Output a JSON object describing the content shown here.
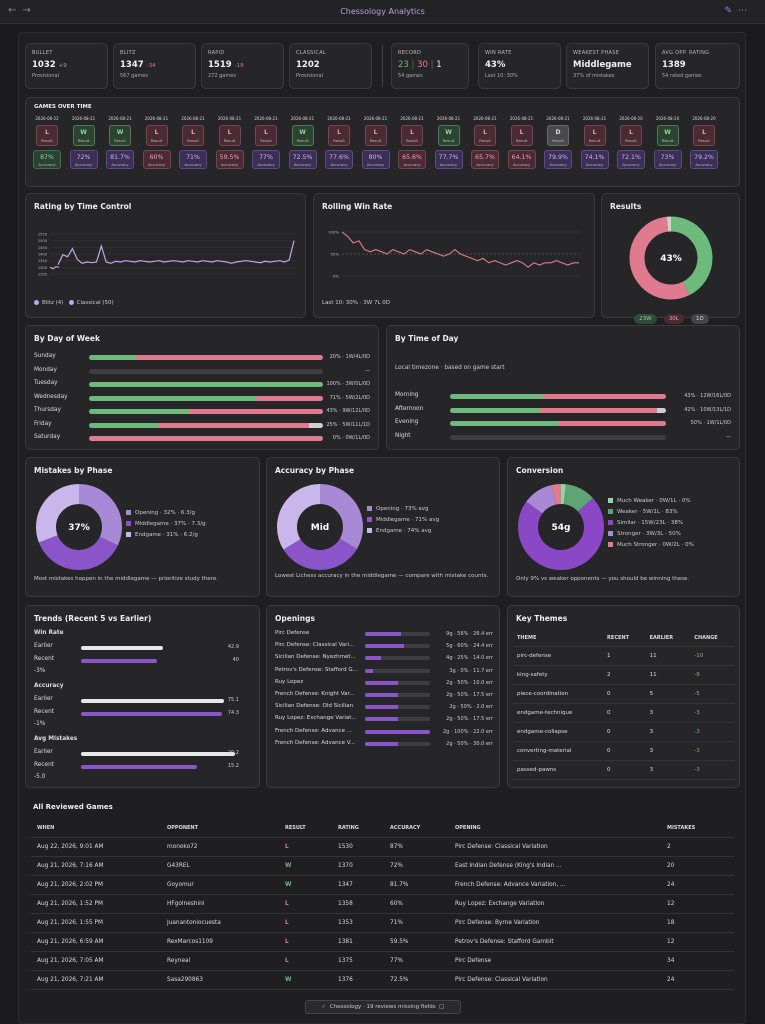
{
  "window": {
    "title": "Chessology Analytics"
  },
  "stats": [
    {
      "label": "BULLET",
      "value": "1032",
      "delta": "+9",
      "delta_sign": "pos",
      "sub": "Provisional"
    },
    {
      "label": "BLITZ",
      "value": "1347",
      "delta": "-34",
      "delta_sign": "neg",
      "sub": "567 games"
    },
    {
      "label": "RAPID",
      "value": "1519",
      "delta": "-19",
      "delta_sign": "neg",
      "sub": "272 games"
    },
    {
      "label": "CLASSICAL",
      "value": "1202",
      "delta": "",
      "delta_sign": "",
      "sub": "Provisional"
    }
  ],
  "record": {
    "label": "RECORD",
    "wins": "23",
    "losses": "30",
    "draws": "1",
    "sub": "54 games"
  },
  "win_rate": {
    "label": "WIN RATE",
    "value": "43%",
    "sub": "Last 10: 30%"
  },
  "weakest_phase": {
    "label": "WEAKEST PHASE",
    "value": "Middlegame",
    "sub": "37% of mistakes"
  },
  "avg_opp": {
    "label": "AVG OPP. RATING",
    "value": "1389",
    "sub": "54 rated games"
  },
  "games_over_time": {
    "title": "GAMES OVER TIME",
    "result_sub": "Result",
    "acc_sub": "Accuracy",
    "games": [
      {
        "date": "2026-08-22",
        "result": "L",
        "acc": "87%",
        "acc_tone": "g"
      },
      {
        "date": "2026-08-21",
        "result": "W",
        "acc": "72%",
        "acc_tone": "p"
      },
      {
        "date": "2026-08-21",
        "result": "W",
        "acc": "81.7%",
        "acc_tone": "p"
      },
      {
        "date": "2026-08-21",
        "result": "L",
        "acc": "60%",
        "acc_tone": "r"
      },
      {
        "date": "2026-08-21",
        "result": "L",
        "acc": "71%",
        "acc_tone": "p"
      },
      {
        "date": "2026-08-21",
        "result": "L",
        "acc": "59.5%",
        "acc_tone": "r"
      },
      {
        "date": "2026-08-21",
        "result": "L",
        "acc": "77%",
        "acc_tone": "p"
      },
      {
        "date": "2026-08-21",
        "result": "W",
        "acc": "72.5%",
        "acc_tone": "p"
      },
      {
        "date": "2026-08-21",
        "result": "L",
        "acc": "77.6%",
        "acc_tone": "p"
      },
      {
        "date": "2026-08-21",
        "result": "L",
        "acc": "80%",
        "acc_tone": "p"
      },
      {
        "date": "2026-08-21",
        "result": "L",
        "acc": "65.6%",
        "acc_tone": "r"
      },
      {
        "date": "2026-08-21",
        "result": "W",
        "acc": "77.7%",
        "acc_tone": "p"
      },
      {
        "date": "2026-08-21",
        "result": "L",
        "acc": "65.7%",
        "acc_tone": "r"
      },
      {
        "date": "2026-08-21",
        "result": "L",
        "acc": "64.1%",
        "acc_tone": "r"
      },
      {
        "date": "2026-08-21",
        "result": "D",
        "acc": "79.9%",
        "acc_tone": "p"
      },
      {
        "date": "2026-08-21",
        "result": "L",
        "acc": "74.1%",
        "acc_tone": "p"
      },
      {
        "date": "2026-08-20",
        "result": "L",
        "acc": "72.1%",
        "acc_tone": "p"
      },
      {
        "date": "2026-08-20",
        "result": "W",
        "acc": "73%",
        "acc_tone": "p"
      },
      {
        "date": "2026-08-20",
        "result": "L",
        "acc": "79.2%",
        "acc_tone": "p"
      }
    ]
  },
  "rating_chart": {
    "title": "Rating by Time Control",
    "yticks": [
      "1550",
      "1500",
      "1450",
      "1400",
      "1350",
      "1300",
      "1250"
    ],
    "ymin": 1250,
    "ymax": 1550,
    "blitz_name": "Blitz (4)",
    "classical_name": "Classical (50)",
    "blitz": [
      1300,
      1290,
      1305,
      1300
    ],
    "classical": [
      1320,
      1395,
      1380,
      1440,
      1360,
      1330,
      1340,
      1335,
      1340,
      1460,
      1340,
      1330,
      1345,
      1340,
      1350,
      1345,
      1340,
      1350,
      1345,
      1340,
      1345,
      1350,
      1340,
      1345,
      1350,
      1345,
      1340,
      1350,
      1345,
      1340,
      1350,
      1345,
      1340,
      1350,
      1345,
      1340,
      1330,
      1340,
      1345,
      1350,
      1345,
      1340,
      1335,
      1345,
      1340,
      1345,
      1350,
      1340,
      1355,
      1500
    ]
  },
  "rolling_chart": {
    "title": "Rolling Win Rate",
    "yticks": [
      "100%",
      "50%",
      "0%"
    ],
    "values": [
      100,
      90,
      75,
      80,
      60,
      55,
      60,
      55,
      50,
      60,
      55,
      50,
      60,
      55,
      50,
      60,
      55,
      50,
      45,
      50,
      60,
      50,
      45,
      40,
      35,
      40,
      30,
      35,
      30,
      25,
      30,
      35,
      30,
      20,
      30,
      25,
      30,
      30,
      35,
      30,
      25,
      30,
      30
    ],
    "footer": "Last 10: 30% · 3W 7L 0D"
  },
  "results": {
    "title": "Results",
    "center": "43%",
    "wins": 23,
    "losses": 30,
    "draws": 1,
    "chips": [
      "23W",
      "30L",
      "1D"
    ]
  },
  "day_of_week": {
    "title": "By Day of Week",
    "rows": [
      {
        "day": "Sunday",
        "w": 1,
        "l": 4,
        "d": 0,
        "label": "20% · 1W/4L/0D"
      },
      {
        "day": "Monday",
        "w": 0,
        "l": 0,
        "d": 0,
        "label": "—"
      },
      {
        "day": "Tuesday",
        "w": 3,
        "l": 0,
        "d": 0,
        "label": "100% · 3W/0L/0D"
      },
      {
        "day": "Wednesday",
        "w": 5,
        "l": 2,
        "d": 0,
        "label": "71% · 5W/2L/0D"
      },
      {
        "day": "Thursday",
        "w": 9,
        "l": 12,
        "d": 0,
        "label": "43% · 9W/12L/0D"
      },
      {
        "day": "Friday",
        "w": 5,
        "l": 11,
        "d": 1,
        "label": "25% · 5W/11L/1D"
      },
      {
        "day": "Saturday",
        "w": 0,
        "l": 1,
        "d": 0,
        "label": "0% · 0W/1L/0D"
      }
    ]
  },
  "time_of_day": {
    "title": "By Time of Day",
    "subtitle": "Local timezone · based on game start",
    "rows": [
      {
        "slot": "Morning",
        "w": 12,
        "l": 16,
        "d": 0,
        "label": "43% · 12W/16L/0D"
      },
      {
        "slot": "Afternoon",
        "w": 10,
        "l": 13,
        "d": 1,
        "label": "42% · 10W/13L/1D"
      },
      {
        "slot": "Evening",
        "w": 1,
        "l": 1,
        "d": 0,
        "label": "50% · 1W/1L/0D"
      },
      {
        "slot": "Night",
        "w": 0,
        "l": 0,
        "d": 0,
        "label": "—"
      }
    ]
  },
  "mistakes": {
    "title": "Mistakes by Phase",
    "center": "37%",
    "slices": [
      {
        "label": "Opening · 32% · 6.3/g",
        "value": 32,
        "color": "#a789d6"
      },
      {
        "label": "Middlegame · 37% · 7.3/g",
        "value": 37,
        "color": "#8a55c9"
      },
      {
        "label": "Endgame · 31% · 6.2/g",
        "value": 31,
        "color": "#c9b6ea"
      }
    ],
    "footer": "Most mistakes happen in the middlegame — prioritize study there."
  },
  "accuracy": {
    "title": "Accuracy by Phase",
    "center": "Mid",
    "slices": [
      {
        "label": "Opening · 73% avg",
        "value": 73,
        "color": "#a789d6"
      },
      {
        "label": "Middlegame · 71% avg",
        "value": 71,
        "color": "#8a55c9"
      },
      {
        "label": "Endgame · 74% avg",
        "value": 74,
        "color": "#c9b6ea"
      }
    ],
    "footer": "Lowest Lichess accuracy in the middlegame — compare with mistake counts."
  },
  "conversion": {
    "title": "Conversion",
    "center": "54g",
    "slices": [
      {
        "label": "Much Weaker · 0W/1L · 0%",
        "value": 1,
        "color": "#8fd7a2"
      },
      {
        "label": "Weaker · 5W/1L · 83%",
        "value": 6,
        "color": "#5fa474"
      },
      {
        "label": "Similar · 15W/23L · 38%",
        "value": 38,
        "color": "#8a48c6"
      },
      {
        "label": "Stronger · 3W/3L · 50%",
        "value": 6,
        "color": "#a789d6"
      },
      {
        "label": "Much Stronger · 0W/2L · 0%",
        "value": 2,
        "color": "#e07a8f"
      }
    ],
    "footer": "Only 9% vs weaker opponents — you should be winning these."
  },
  "trends": {
    "title": "Trends (Recent 5 vs Earlier)",
    "groups": [
      {
        "name": "Win Rate",
        "earlier": 42.9,
        "recent": 40,
        "max": 100,
        "earlier_label": "42.9",
        "recent_label": "40",
        "delta": "-3%",
        "delta_sign": "neg"
      },
      {
        "name": "Accuracy",
        "earlier": 75.1,
        "recent": 74.3,
        "max": 100,
        "earlier_label": "75.1",
        "recent_label": "74.3",
        "delta": "-1%",
        "delta_sign": "neg"
      },
      {
        "name": "Avg Mistakes",
        "earlier": 20.2,
        "recent": 15.2,
        "max": 25,
        "earlier_label": "20.2",
        "recent_label": "15.2",
        "delta": "-5.0",
        "delta_sign": "pos"
      }
    ],
    "earlier_label": "Earlier",
    "recent_label": "Recent"
  },
  "openings": {
    "title": "Openings",
    "rows": [
      {
        "name": "Pirc Defense",
        "label": "9g · 56% · 26.4 err",
        "frac": 0.56
      },
      {
        "name": "Pirc Defense: Classical Vari...",
        "label": "5g · 60% · 24.4 err",
        "frac": 0.6
      },
      {
        "name": "Sicilian Defense: Nyezhmet...",
        "label": "4g · 25% · 14.0 err",
        "frac": 0.25
      },
      {
        "name": "Petrov's Defense: Stafford G...",
        "label": "3g · 0% · 11.7 err",
        "frac": 0.0
      },
      {
        "name": "Ruy Lopez",
        "label": "2g · 50% · 10.0 err",
        "frac": 0.5
      },
      {
        "name": "French Defense: Knight Var...",
        "label": "2g · 50% · 17.5 err",
        "frac": 0.5
      },
      {
        "name": "Sicilian Defense: Old Sicilian",
        "label": "2g · 50% · 2.0 err",
        "frac": 0.5
      },
      {
        "name": "Ruy Lopez: Exchange Variat...",
        "label": "2g · 50% · 17.5 err",
        "frac": 0.5
      },
      {
        "name": "French Defense: Advance ...",
        "label": "2g · 100% · 22.0 err",
        "frac": 1.0
      },
      {
        "name": "French Defense: Advance V...",
        "label": "2g · 50% · 30.0 err",
        "frac": 0.5
      }
    ]
  },
  "themes": {
    "title": "Key Themes",
    "headers": [
      "THEME",
      "RECENT",
      "EARLIER",
      "CHANGE"
    ],
    "rows": [
      [
        "pirc-defense",
        "1",
        "11",
        "-10"
      ],
      [
        "king-safety",
        "2",
        "11",
        "-9"
      ],
      [
        "piece-coordination",
        "0",
        "5",
        "-5"
      ],
      [
        "endgame-technique",
        "0",
        "3",
        "-3"
      ],
      [
        "endgame-collapse",
        "0",
        "3",
        "-3"
      ],
      [
        "converting-material",
        "0",
        "3",
        "-3"
      ],
      [
        "passed-pawns",
        "0",
        "3",
        "-3"
      ]
    ]
  },
  "games_table": {
    "title": "All Reviewed Games",
    "headers": [
      "WHEN",
      "OPPONENT",
      "RESULT",
      "RATING",
      "ACCURACY",
      "OPENING",
      "MISTAKES"
    ],
    "rows": [
      [
        "Aug 22, 2026, 9:01 AM",
        "monoko72",
        "L",
        "1530",
        "87%",
        "Pirc Defense: Classical Variation",
        "2"
      ],
      [
        "Aug 21, 2026, 7:16 AM",
        "G43REL",
        "W",
        "1370",
        "72%",
        "East Indian Defense (King's Indian ...",
        "20"
      ],
      [
        "Aug 21, 2026, 2:02 PM",
        "Goyomur",
        "W",
        "1347",
        "81.7%",
        "French Defense: Advance Variation, ...",
        "24"
      ],
      [
        "Aug 21, 2026, 1:52 PM",
        "HFgolneshini",
        "L",
        "1358",
        "60%",
        "Ruy Lopez: Exchange Variation",
        "12"
      ],
      [
        "Aug 21, 2026, 1:55 PM",
        "Juanantoniocuesta",
        "L",
        "1353",
        "71%",
        "Pirc Defense: Byrne Variation",
        "18"
      ],
      [
        "Aug 21, 2026, 6:59 AM",
        "RexMarcos1109",
        "L",
        "1381",
        "59.5%",
        "Petrov's Defense: Stafford Gambit",
        "12"
      ],
      [
        "Aug 21, 2026, 7:05 AM",
        "Reyneal",
        "L",
        "1375",
        "77%",
        "Pirc Defense",
        "34"
      ],
      [
        "Aug 21, 2026, 7:21 AM",
        "Sasa290863",
        "W",
        "1376",
        "72.5%",
        "Pirc Defense: Classical Variation",
        "24"
      ]
    ]
  },
  "toast": {
    "text": "Chessology · 19 reviews missing fields"
  },
  "colors": {
    "win": "#6dbb7c",
    "loss": "#e07a8f",
    "draw": "#cfcfcf",
    "accent": "#9d6fe0"
  }
}
